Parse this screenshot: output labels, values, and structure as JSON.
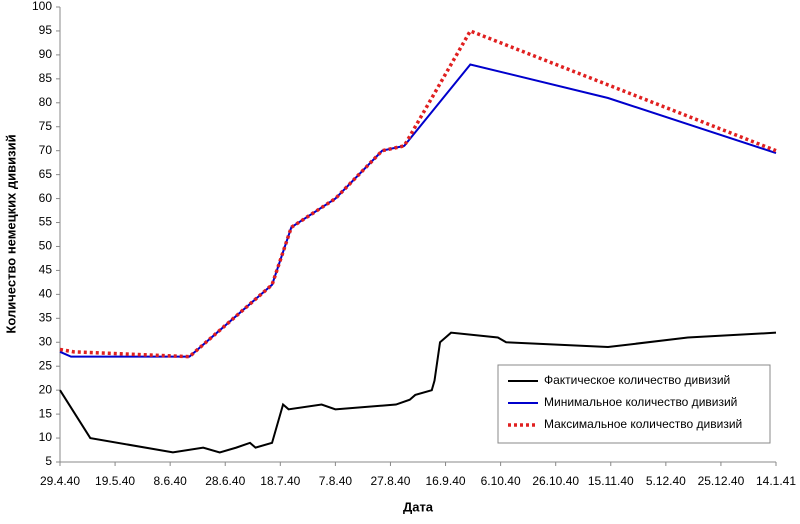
{
  "chart_data": {
    "type": "line",
    "x_label": "Дата",
    "y_label": "Количество немецких дивизий",
    "xlim": [
      "29.4.40",
      "14.1.41"
    ],
    "xticks": [
      "29.4.40",
      "19.5.40",
      "8.6.40",
      "28.6.40",
      "18.7.40",
      "7.8.40",
      "27.8.40",
      "16.9.40",
      "6.10.40",
      "26.10.40",
      "15.11.40",
      "5.12.40",
      "25.12.40",
      "14.1.41"
    ],
    "ylim": [
      5,
      100
    ],
    "yticks": [
      5,
      10,
      15,
      20,
      25,
      30,
      35,
      40,
      45,
      50,
      55,
      60,
      65,
      70,
      75,
      80,
      85,
      90,
      95,
      100
    ],
    "grid": false,
    "legend": "lower right",
    "series": [
      {
        "name": "Фактическое количество дивизий",
        "color": "#000000",
        "style": "solid",
        "x": [
          "29.4.40",
          "10.5.40",
          "9.6.40",
          "20.6.40",
          "26.6.40",
          "2.7.40",
          "7.7.40",
          "9.7.40",
          "15.7.40",
          "19.7.40",
          "21.7.40",
          "2.8.40",
          "7.8.40",
          "29.8.40",
          "3.9.40",
          "5.9.40",
          "11.9.40",
          "12.9.40",
          "14.9.40",
          "16.9.40",
          "18.9.40",
          "5.10.40",
          "8.10.40",
          "14.11.40",
          "13.12.40",
          "14.1.41"
        ],
        "values": [
          20,
          10,
          7,
          8,
          7,
          8,
          9,
          8,
          9,
          17,
          16,
          17,
          16,
          17,
          18,
          19,
          20,
          22,
          30,
          31,
          32,
          31,
          30,
          29,
          31,
          32
        ]
      },
      {
        "name": "Минимальное количество дивизий",
        "color": "#0000cc",
        "style": "solid",
        "x": [
          "29.4.40",
          "3.5.40",
          "15.6.40",
          "15.7.40",
          "22.7.40",
          "7.8.40",
          "24.8.40",
          "1.9.40",
          "25.9.40",
          "14.11.40",
          "14.1.41"
        ],
        "values": [
          28,
          27,
          27,
          42,
          54,
          60,
          70,
          71,
          88,
          81,
          69.5
        ]
      },
      {
        "name": "Максимальное количество дивизий",
        "color": "#e02020",
        "style": "dotted",
        "x": [
          "29.4.40",
          "4.5.40",
          "15.6.40",
          "15.7.40",
          "22.7.40",
          "7.8.40",
          "24.8.40",
          "1.9.40",
          "25.9.40",
          "14.1.41"
        ],
        "values": [
          28.5,
          28,
          27,
          42,
          54,
          60,
          70,
          71,
          95,
          70
        ]
      }
    ]
  }
}
